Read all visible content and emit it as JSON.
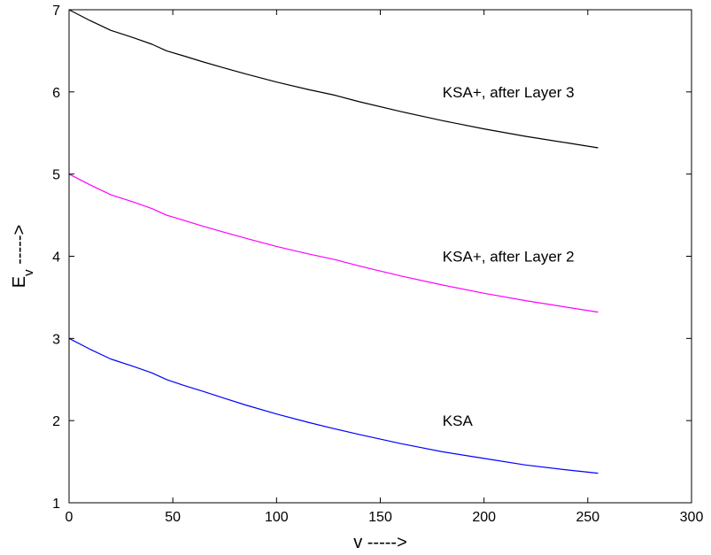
{
  "chart_data": {
    "type": "line",
    "xlabel": "v ----->",
    "ylabel_main": "E",
    "ylabel_sub": "v",
    "ylabel_tail": " ----->",
    "xlim": [
      0,
      300
    ],
    "ylim": [
      1,
      7
    ],
    "xticks": [
      0,
      50,
      100,
      150,
      200,
      250,
      300
    ],
    "yticks": [
      1,
      2,
      3,
      4,
      5,
      6,
      7
    ],
    "grid": false,
    "legend": "none",
    "series": [
      {
        "name": "KSA+, after Layer 3",
        "color": "#000000",
        "label_at": [
          180,
          6.0
        ],
        "x": [
          0,
          10,
          20,
          31,
          40,
          47,
          55,
          64,
          75,
          85,
          100,
          115,
          128,
          140,
          160,
          180,
          200,
          220,
          240,
          255
        ],
        "y": [
          7.0,
          6.87,
          6.75,
          6.66,
          6.58,
          6.5,
          6.44,
          6.37,
          6.29,
          6.22,
          6.12,
          6.03,
          5.96,
          5.88,
          5.76,
          5.65,
          5.55,
          5.46,
          5.38,
          5.32
        ]
      },
      {
        "name": "KSA+, after Layer 2",
        "color": "#ff00ff",
        "label_at": [
          180,
          4.0
        ],
        "x": [
          0,
          10,
          20,
          31,
          40,
          47,
          55,
          64,
          75,
          85,
          100,
          115,
          128,
          140,
          160,
          180,
          200,
          220,
          240,
          255
        ],
        "y": [
          5.0,
          4.87,
          4.75,
          4.66,
          4.58,
          4.5,
          4.44,
          4.37,
          4.29,
          4.22,
          4.12,
          4.03,
          3.96,
          3.88,
          3.76,
          3.65,
          3.55,
          3.46,
          3.38,
          3.32
        ]
      },
      {
        "name": "KSA",
        "color": "#0000ff",
        "label_at": [
          180,
          2.0
        ],
        "x": [
          0,
          10,
          20,
          31,
          40,
          47,
          55,
          64,
          75,
          85,
          100,
          115,
          128,
          140,
          160,
          180,
          200,
          220,
          240,
          255
        ],
        "y": [
          3.0,
          2.87,
          2.75,
          2.66,
          2.58,
          2.5,
          2.43,
          2.36,
          2.27,
          2.19,
          2.08,
          1.98,
          1.9,
          1.83,
          1.72,
          1.62,
          1.54,
          1.46,
          1.4,
          1.36
        ]
      }
    ]
  }
}
